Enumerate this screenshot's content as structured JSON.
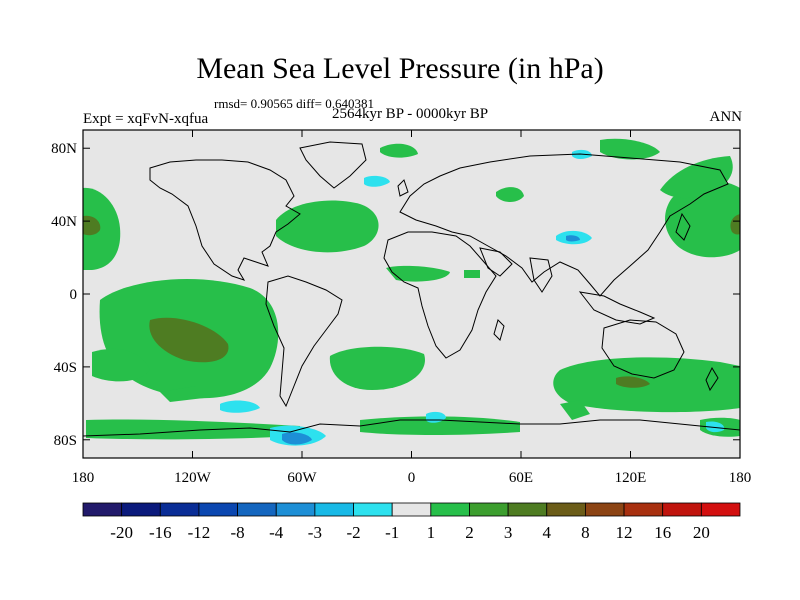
{
  "title": "Mean Sea Level Pressure (in hPa)",
  "stats": "rmsd= 0.90565  diff= 0.640381",
  "experiment": "Expt = xqFvN-xqfua",
  "period": "2564kyr BP - 0000kyr BP",
  "season": "ANN",
  "map": {
    "lon_range": [
      -180,
      180
    ],
    "lat_range": [
      -90,
      90
    ],
    "lat_ticks": [
      {
        "value": 80,
        "label": "80N"
      },
      {
        "value": 40,
        "label": "40N"
      },
      {
        "value": 0,
        "label": "0"
      },
      {
        "value": -40,
        "label": "40S"
      },
      {
        "value": -80,
        "label": "80S"
      }
    ],
    "lon_ticks": [
      {
        "value": -180,
        "label": "180"
      },
      {
        "value": -120,
        "label": "120W"
      },
      {
        "value": -60,
        "label": "60W"
      },
      {
        "value": 0,
        "label": "0"
      },
      {
        "value": 60,
        "label": "60E"
      },
      {
        "value": 120,
        "label": "120E"
      },
      {
        "value": 180,
        "label": "180"
      }
    ],
    "background_color": "#e6e6e6",
    "coastline_color": "#000000"
  },
  "colorbar": {
    "labels": [
      "-20",
      "-16",
      "-12",
      "-8",
      "-4",
      "-3",
      "-2",
      "-1",
      "1",
      "2",
      "3",
      "4",
      "8",
      "12",
      "16",
      "20"
    ],
    "colors": [
      "#221a6b",
      "#0b1a7c",
      "#0a2d96",
      "#0b47b0",
      "#1466bf",
      "#1d8fd6",
      "#18b9e6",
      "#2de1ee",
      "#e6e6e6",
      "#27bf4a",
      "#3c9e2e",
      "#4e7c22",
      "#6b5c18",
      "#8c4414",
      "#a8300f",
      "#c0140d",
      "#d30f0f"
    ]
  }
}
